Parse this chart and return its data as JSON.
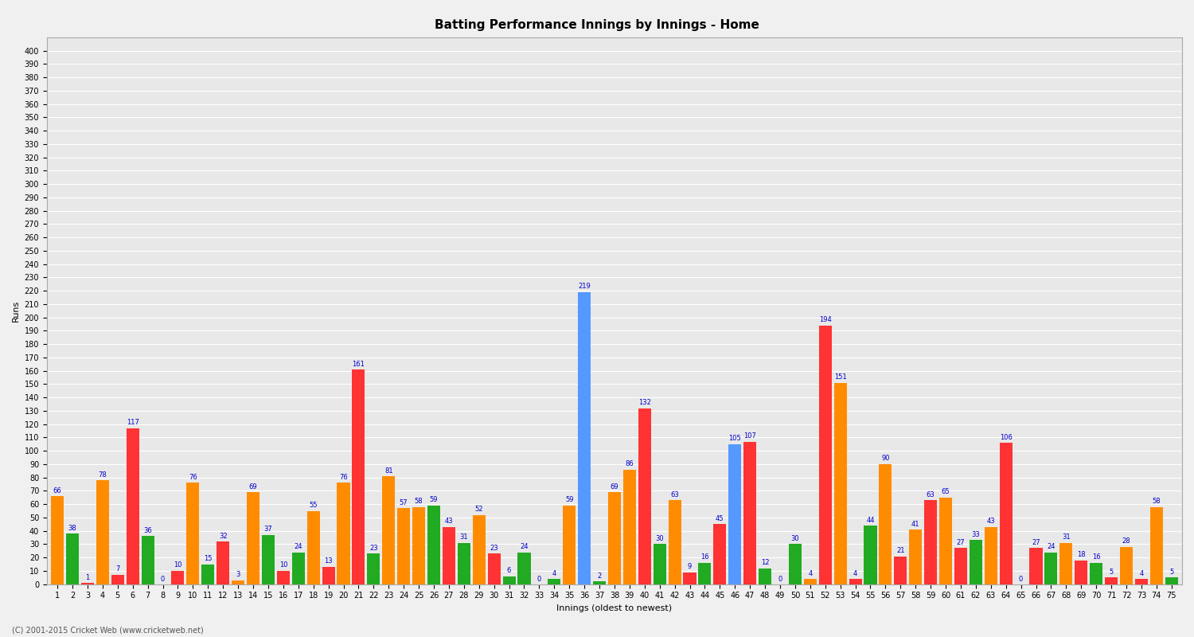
{
  "title": "Batting Performance Innings by Innings - Home",
  "xlabel": "Innings (oldest to newest)",
  "ylabel": "Runs",
  "ylim": [
    0,
    410
  ],
  "yticks": [
    0,
    10,
    20,
    30,
    40,
    50,
    60,
    70,
    80,
    90,
    100,
    110,
    120,
    130,
    140,
    150,
    160,
    170,
    180,
    190,
    200,
    210,
    220,
    230,
    240,
    250,
    260,
    270,
    280,
    290,
    300,
    310,
    320,
    330,
    340,
    350,
    360,
    370,
    380,
    390,
    400
  ],
  "innings": [
    {
      "label": "1",
      "runs": 66,
      "color": "#ff8c00"
    },
    {
      "label": "2",
      "runs": 38,
      "color": "#22aa22"
    },
    {
      "label": "3",
      "runs": 1,
      "color": "#ff3333"
    },
    {
      "label": "4",
      "runs": 78,
      "color": "#ff8c00"
    },
    {
      "label": "5",
      "runs": 7,
      "color": "#ff3333"
    },
    {
      "label": "6",
      "runs": 117,
      "color": "#ff3333"
    },
    {
      "label": "7",
      "runs": 36,
      "color": "#22aa22"
    },
    {
      "label": "8",
      "runs": 0,
      "color": "#ff8c00"
    },
    {
      "label": "9",
      "runs": 10,
      "color": "#ff3333"
    },
    {
      "label": "10",
      "runs": 76,
      "color": "#ff8c00"
    },
    {
      "label": "11",
      "runs": 15,
      "color": "#22aa22"
    },
    {
      "label": "12",
      "runs": 32,
      "color": "#ff3333"
    },
    {
      "label": "13",
      "runs": 3,
      "color": "#ff8c00"
    },
    {
      "label": "14",
      "runs": 69,
      "color": "#ff8c00"
    },
    {
      "label": "15",
      "runs": 37,
      "color": "#22aa22"
    },
    {
      "label": "16",
      "runs": 10,
      "color": "#ff3333"
    },
    {
      "label": "17",
      "runs": 24,
      "color": "#22aa22"
    },
    {
      "label": "18",
      "runs": 55,
      "color": "#ff8c00"
    },
    {
      "label": "19",
      "runs": 13,
      "color": "#ff3333"
    },
    {
      "label": "20",
      "runs": 76,
      "color": "#ff8c00"
    },
    {
      "label": "21",
      "runs": 161,
      "color": "#ff3333"
    },
    {
      "label": "22",
      "runs": 23,
      "color": "#22aa22"
    },
    {
      "label": "23",
      "runs": 81,
      "color": "#ff8c00"
    },
    {
      "label": "24",
      "runs": 57,
      "color": "#ff8c00"
    },
    {
      "label": "25",
      "runs": 58,
      "color": "#ff8c00"
    },
    {
      "label": "26",
      "runs": 59,
      "color": "#22aa22"
    },
    {
      "label": "27",
      "runs": 43,
      "color": "#ff3333"
    },
    {
      "label": "28",
      "runs": 31,
      "color": "#22aa22"
    },
    {
      "label": "29",
      "runs": 52,
      "color": "#ff8c00"
    },
    {
      "label": "30",
      "runs": 23,
      "color": "#ff3333"
    },
    {
      "label": "31",
      "runs": 6,
      "color": "#22aa22"
    },
    {
      "label": "32",
      "runs": 24,
      "color": "#22aa22"
    },
    {
      "label": "33",
      "runs": 0,
      "color": "#ff3333"
    },
    {
      "label": "34",
      "runs": 4,
      "color": "#22aa22"
    },
    {
      "label": "35",
      "runs": 59,
      "color": "#ff8c00"
    },
    {
      "label": "36",
      "runs": 219,
      "color": "#5599ff"
    },
    {
      "label": "37",
      "runs": 2,
      "color": "#22aa22"
    },
    {
      "label": "38",
      "runs": 69,
      "color": "#ff8c00"
    },
    {
      "label": "39",
      "runs": 86,
      "color": "#ff8c00"
    },
    {
      "label": "40",
      "runs": 132,
      "color": "#ff3333"
    },
    {
      "label": "41",
      "runs": 30,
      "color": "#22aa22"
    },
    {
      "label": "42",
      "runs": 63,
      "color": "#ff8c00"
    },
    {
      "label": "43",
      "runs": 9,
      "color": "#ff3333"
    },
    {
      "label": "44",
      "runs": 16,
      "color": "#22aa22"
    },
    {
      "label": "45",
      "runs": 45,
      "color": "#ff3333"
    },
    {
      "label": "46",
      "runs": 105,
      "color": "#5599ff"
    },
    {
      "label": "47",
      "runs": 107,
      "color": "#ff3333"
    },
    {
      "label": "48",
      "runs": 12,
      "color": "#22aa22"
    },
    {
      "label": "49",
      "runs": 0,
      "color": "#ff3333"
    },
    {
      "label": "50",
      "runs": 30,
      "color": "#22aa22"
    },
    {
      "label": "51",
      "runs": 4,
      "color": "#ff8c00"
    },
    {
      "label": "52",
      "runs": 194,
      "color": "#ff3333"
    },
    {
      "label": "53",
      "runs": 151,
      "color": "#ff8c00"
    },
    {
      "label": "54",
      "runs": 4,
      "color": "#ff3333"
    },
    {
      "label": "55",
      "runs": 44,
      "color": "#22aa22"
    },
    {
      "label": "56",
      "runs": 90,
      "color": "#ff8c00"
    },
    {
      "label": "57",
      "runs": 21,
      "color": "#ff3333"
    },
    {
      "label": "58",
      "runs": 41,
      "color": "#ff8c00"
    },
    {
      "label": "59",
      "runs": 63,
      "color": "#ff3333"
    },
    {
      "label": "60",
      "runs": 65,
      "color": "#ff8c00"
    },
    {
      "label": "61",
      "runs": 27,
      "color": "#ff3333"
    },
    {
      "label": "62",
      "runs": 33,
      "color": "#22aa22"
    },
    {
      "label": "63",
      "runs": 43,
      "color": "#ff8c00"
    },
    {
      "label": "64",
      "runs": 106,
      "color": "#ff3333"
    },
    {
      "label": "65",
      "runs": 0,
      "color": "#22aa22"
    },
    {
      "label": "66",
      "runs": 27,
      "color": "#ff3333"
    },
    {
      "label": "67",
      "runs": 24,
      "color": "#22aa22"
    },
    {
      "label": "68",
      "runs": 31,
      "color": "#ff8c00"
    },
    {
      "label": "69",
      "runs": 18,
      "color": "#ff3333"
    },
    {
      "label": "70",
      "runs": 16,
      "color": "#22aa22"
    },
    {
      "label": "71",
      "runs": 5,
      "color": "#ff3333"
    },
    {
      "label": "72",
      "runs": 28,
      "color": "#ff8c00"
    },
    {
      "label": "73",
      "runs": 4,
      "color": "#ff3333"
    },
    {
      "label": "74",
      "runs": 58,
      "color": "#ff8c00"
    },
    {
      "label": "75",
      "runs": 5,
      "color": "#22aa22"
    }
  ],
  "bg_color": "#f0f0f0",
  "plot_bg_color": "#e8e8e8",
  "grid_color": "#ffffff",
  "bar_width": 0.85,
  "title_fontsize": 11,
  "label_fontsize": 8,
  "tick_fontsize": 7,
  "value_fontsize": 6,
  "footer": "(C) 2001-2015 Cricket Web (www.cricketweb.net)"
}
